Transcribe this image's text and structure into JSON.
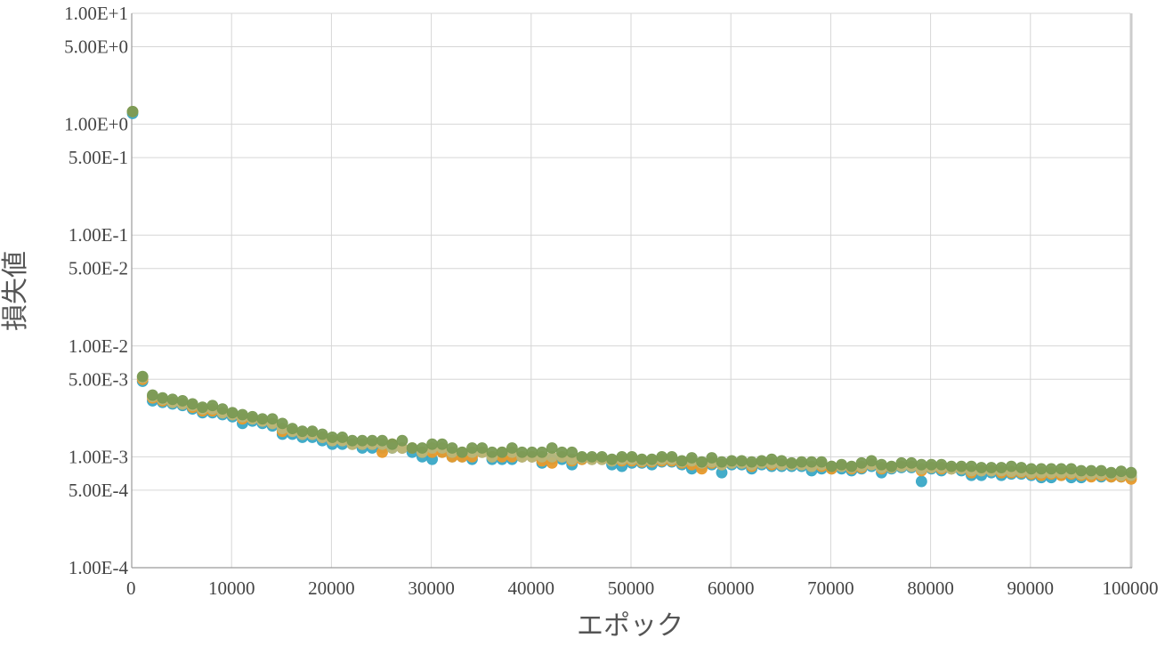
{
  "chart_data": {
    "type": "scatter",
    "title": "",
    "xlabel": "エポック",
    "ylabel": "損失値",
    "xlim": [
      0,
      100000
    ],
    "ylim": [
      0.0001,
      10
    ],
    "y_scale": "log",
    "grid": true,
    "x_ticks": [
      "0",
      "10000",
      "20000",
      "30000",
      "40000",
      "50000",
      "60000",
      "70000",
      "80000",
      "90000",
      "100000"
    ],
    "y_ticks": [
      {
        "value": 10,
        "label": "1.00E+1"
      },
      {
        "value": 5,
        "label": "5.00E+0"
      },
      {
        "value": 1,
        "label": "1.00E+0"
      },
      {
        "value": 0.5,
        "label": "5.00E-1"
      },
      {
        "value": 0.1,
        "label": "1.00E-1"
      },
      {
        "value": 0.05,
        "label": "5.00E-2"
      },
      {
        "value": 0.01,
        "label": "1.00E-2"
      },
      {
        "value": 0.005,
        "label": "5.00E-3"
      },
      {
        "value": 0.001,
        "label": "1.00E-3"
      },
      {
        "value": 0.0005,
        "label": "5.00E-4"
      },
      {
        "value": 0.0001,
        "label": "1.00E-4"
      }
    ],
    "x": [
      0,
      1000,
      2000,
      3000,
      4000,
      5000,
      6000,
      7000,
      8000,
      9000,
      10000,
      11000,
      12000,
      13000,
      14000,
      15000,
      16000,
      17000,
      18000,
      19000,
      20000,
      21000,
      22000,
      23000,
      24000,
      25000,
      26000,
      27000,
      28000,
      29000,
      30000,
      31000,
      32000,
      33000,
      34000,
      35000,
      36000,
      37000,
      38000,
      39000,
      40000,
      41000,
      42000,
      43000,
      44000,
      45000,
      46000,
      47000,
      48000,
      49000,
      50000,
      51000,
      52000,
      53000,
      54000,
      55000,
      56000,
      57000,
      58000,
      59000,
      60000,
      61000,
      62000,
      63000,
      64000,
      65000,
      66000,
      67000,
      68000,
      69000,
      70000,
      71000,
      72000,
      73000,
      74000,
      75000,
      76000,
      77000,
      78000,
      79000,
      80000,
      81000,
      82000,
      83000,
      84000,
      85000,
      86000,
      87000,
      88000,
      89000,
      90000,
      91000,
      92000,
      93000,
      94000,
      95000,
      96000,
      97000,
      98000,
      99000,
      100000
    ],
    "series": [
      {
        "color": "#3aa8c6",
        "values": [
          1.25,
          0.0048,
          0.0032,
          0.0031,
          0.003,
          0.0029,
          0.0027,
          0.0025,
          0.0025,
          0.0024,
          0.0023,
          0.002,
          0.0021,
          0.002,
          0.0019,
          0.0016,
          0.0016,
          0.0015,
          0.0015,
          0.0014,
          0.0013,
          0.0013,
          0.0013,
          0.0012,
          0.0012,
          0.0012,
          0.0012,
          0.0012,
          0.0011,
          0.001,
          0.00095,
          0.0011,
          0.001,
          0.001,
          0.00095,
          0.0011,
          0.00095,
          0.00095,
          0.00095,
          0.001,
          0.001,
          0.00088,
          0.00095,
          0.00095,
          0.00085,
          0.00095,
          0.00095,
          0.00095,
          0.00085,
          0.00082,
          0.00088,
          0.00088,
          0.00085,
          0.0009,
          0.0009,
          0.00085,
          0.00078,
          0.00082,
          0.00085,
          0.00072,
          0.00085,
          0.00085,
          0.00078,
          0.00085,
          0.00082,
          0.00082,
          0.00082,
          0.00082,
          0.00075,
          0.00078,
          0.00078,
          0.00078,
          0.00075,
          0.00078,
          0.00082,
          0.00072,
          0.00078,
          0.0008,
          0.0008,
          0.0006,
          0.00078,
          0.00075,
          0.00078,
          0.00075,
          0.00068,
          0.00068,
          0.00072,
          0.00068,
          0.0007,
          0.0007,
          0.00068,
          0.00065,
          0.00065,
          0.00068,
          0.00065,
          0.00065,
          0.00068,
          0.00066,
          0.00066,
          0.00066,
          0.00066
        ]
      },
      {
        "color": "#e89a2c",
        "values": [
          1.3,
          0.005,
          0.0034,
          0.0032,
          0.0031,
          0.003,
          0.0028,
          0.0026,
          0.0026,
          0.0025,
          0.0024,
          0.0022,
          0.0022,
          0.0021,
          0.002,
          0.0017,
          0.0017,
          0.0016,
          0.0016,
          0.0015,
          0.0014,
          0.0014,
          0.0013,
          0.0013,
          0.0013,
          0.0011,
          0.0013,
          0.0012,
          0.0012,
          0.0011,
          0.0011,
          0.0011,
          0.001,
          0.001,
          0.001,
          0.0011,
          0.001,
          0.001,
          0.001,
          0.001,
          0.001,
          0.00092,
          0.00088,
          0.001,
          0.00092,
          0.00095,
          0.00095,
          0.00095,
          0.00092,
          0.00092,
          0.00092,
          0.0009,
          0.0009,
          0.00092,
          0.00092,
          0.00088,
          0.00085,
          0.00078,
          0.00088,
          0.00085,
          0.00088,
          0.00088,
          0.00082,
          0.00088,
          0.00085,
          0.00085,
          0.00085,
          0.00085,
          0.00082,
          0.00082,
          0.00078,
          0.00082,
          0.00078,
          0.0008,
          0.00085,
          0.00078,
          0.0008,
          0.00082,
          0.00082,
          0.00075,
          0.0008,
          0.00078,
          0.00078,
          0.00078,
          0.00072,
          0.00075,
          0.00075,
          0.00072,
          0.00072,
          0.00072,
          0.0007,
          0.00068,
          0.0007,
          0.00068,
          0.0007,
          0.00068,
          0.00066,
          0.00068,
          0.00066,
          0.00066,
          0.00063
        ]
      },
      {
        "color": "#b8b67a",
        "values": [
          1.3,
          0.0052,
          0.0035,
          0.0033,
          0.0031,
          0.003,
          0.0029,
          0.0027,
          0.0027,
          0.0025,
          0.0024,
          0.0023,
          0.0022,
          0.0021,
          0.002,
          0.0018,
          0.0017,
          0.0016,
          0.0016,
          0.0015,
          0.0014,
          0.0014,
          0.0013,
          0.0013,
          0.0013,
          0.0013,
          0.0012,
          0.0012,
          0.0012,
          0.0011,
          0.0012,
          0.0012,
          0.0011,
          0.0011,
          0.0011,
          0.0011,
          0.001,
          0.0011,
          0.0011,
          0.001,
          0.001,
          0.001,
          0.001,
          0.001,
          0.00095,
          0.00098,
          0.00095,
          0.00095,
          0.00092,
          0.00095,
          0.00095,
          0.00092,
          0.00092,
          0.00095,
          0.00095,
          0.0009,
          0.00092,
          0.00088,
          0.0009,
          0.00085,
          0.00088,
          0.00088,
          0.00085,
          0.00088,
          0.00088,
          0.00085,
          0.00085,
          0.00085,
          0.00082,
          0.00085,
          0.00082,
          0.00082,
          0.0008,
          0.00082,
          0.00085,
          0.0008,
          0.0008,
          0.00082,
          0.00082,
          0.00078,
          0.0008,
          0.0008,
          0.00078,
          0.00078,
          0.00075,
          0.00075,
          0.00075,
          0.00075,
          0.00074,
          0.00074,
          0.00072,
          0.00072,
          0.00072,
          0.00072,
          0.00072,
          0.0007,
          0.0007,
          0.0007,
          0.0007,
          0.00068,
          0.00068
        ]
      },
      {
        "color": "#7a9a54",
        "values": [
          1.3,
          0.0053,
          0.0036,
          0.0034,
          0.0033,
          0.0032,
          0.003,
          0.0028,
          0.0029,
          0.0027,
          0.0025,
          0.0024,
          0.0023,
          0.0022,
          0.0022,
          0.002,
          0.0018,
          0.0017,
          0.0017,
          0.0016,
          0.0015,
          0.0015,
          0.0014,
          0.0014,
          0.0014,
          0.0014,
          0.0013,
          0.0014,
          0.0012,
          0.0012,
          0.0013,
          0.0013,
          0.0012,
          0.0011,
          0.0012,
          0.0012,
          0.0011,
          0.0011,
          0.0012,
          0.0011,
          0.0011,
          0.0011,
          0.0012,
          0.0011,
          0.0011,
          0.001,
          0.001,
          0.001,
          0.00095,
          0.001,
          0.001,
          0.00095,
          0.00095,
          0.001,
          0.001,
          0.00092,
          0.00098,
          0.0009,
          0.00098,
          0.0009,
          0.00092,
          0.00092,
          0.0009,
          0.00092,
          0.00095,
          0.00092,
          0.00088,
          0.0009,
          0.0009,
          0.0009,
          0.00082,
          0.00085,
          0.00082,
          0.00088,
          0.00092,
          0.00085,
          0.00082,
          0.00088,
          0.00088,
          0.00085,
          0.00085,
          0.00085,
          0.00082,
          0.00082,
          0.00082,
          0.0008,
          0.0008,
          0.0008,
          0.00082,
          0.0008,
          0.00078,
          0.00078,
          0.00078,
          0.00078,
          0.00078,
          0.00075,
          0.00075,
          0.00075,
          0.00072,
          0.00074,
          0.00072
        ]
      }
    ]
  }
}
